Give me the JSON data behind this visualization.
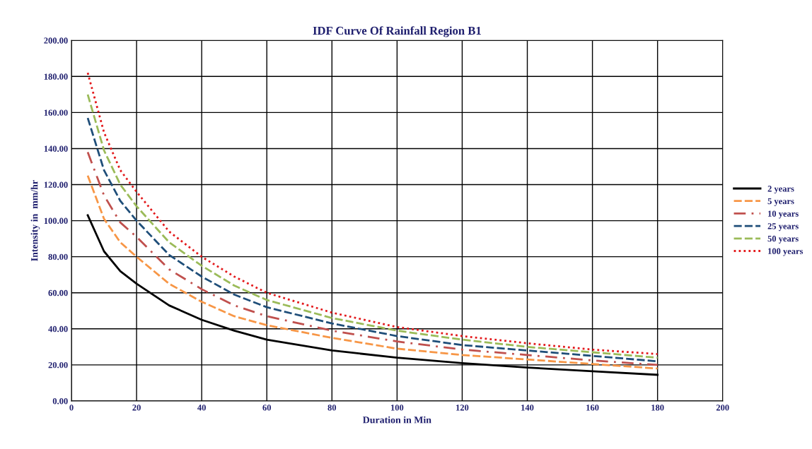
{
  "chart_data": {
    "type": "line",
    "title": "IDF Curve Of Rainfall Region B1",
    "xlabel": "Duration in Min",
    "ylabel": "Intensity in  mm/hr",
    "x": [
      5,
      10,
      15,
      20,
      30,
      40,
      50,
      60,
      80,
      100,
      120,
      140,
      160,
      180
    ],
    "series": [
      {
        "name": "2 years",
        "color": "#000000",
        "line_style": "solid",
        "values": [
          103,
          83,
          72,
          65,
          53,
          45,
          39,
          34,
          28,
          24,
          21,
          18.5,
          16.5,
          14.5
        ]
      },
      {
        "name": "5 years",
        "color": "#f79646",
        "line_style": "dashed",
        "values": [
          125,
          101,
          88,
          80,
          65,
          55,
          47,
          42,
          35,
          29,
          25.5,
          23,
          20.5,
          18
        ]
      },
      {
        "name": "10 years",
        "color": "#c0504d",
        "line_style": "dashdot",
        "values": [
          138,
          114,
          99,
          91,
          73,
          62,
          53,
          47,
          39,
          33,
          28.5,
          25.5,
          22.5,
          20
        ]
      },
      {
        "name": "25 years",
        "color": "#1f4e79",
        "line_style": "dashed",
        "values": [
          157,
          128,
          111,
          100,
          81,
          69,
          59,
          52,
          43,
          36,
          31,
          28,
          25,
          22
        ]
      },
      {
        "name": "50 years",
        "color": "#9bbb59",
        "line_style": "dashed",
        "values": [
          170,
          139,
          120,
          108,
          88,
          75,
          64,
          56,
          46,
          39,
          34,
          30,
          27,
          24
        ]
      },
      {
        "name": "100 years",
        "color": "#e31a1c",
        "line_style": "dotted",
        "values": [
          182,
          149,
          128,
          116,
          94,
          80,
          69,
          60,
          49,
          41,
          36,
          32,
          28.5,
          26
        ]
      }
    ],
    "xlim": [
      0,
      200
    ],
    "xticks": [
      0,
      20,
      40,
      60,
      80,
      100,
      120,
      140,
      160,
      180,
      200
    ],
    "ylim": [
      0,
      200
    ],
    "yticks": [
      {
        "value": 0,
        "label": "0.00"
      },
      {
        "value": 20,
        "label": "20.00"
      },
      {
        "value": 40,
        "label": "40.00"
      },
      {
        "value": 60,
        "label": "60.00"
      },
      {
        "value": 80,
        "label": "80.00"
      },
      {
        "value": 100,
        "label": "100.00"
      },
      {
        "value": 120,
        "label": "120.00"
      },
      {
        "value": 140,
        "label": "140.00"
      },
      {
        "value": 160,
        "label": "160.00"
      },
      {
        "value": 180,
        "label": "180.00"
      },
      {
        "value": 200,
        "label": "200.00"
      }
    ],
    "grid": true,
    "legend": "right",
    "marker": "none"
  }
}
